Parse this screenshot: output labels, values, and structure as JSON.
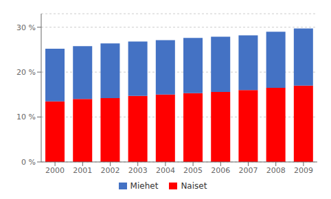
{
  "chart_data": {
    "type": "bar",
    "stacked": true,
    "categories": [
      "2000",
      "2001",
      "2002",
      "2003",
      "2004",
      "2005",
      "2006",
      "2007",
      "2008",
      "2009"
    ],
    "series": [
      {
        "name": "Naiset",
        "color": "#FF0000",
        "values": [
          13.5,
          14.0,
          14.2,
          14.7,
          15.0,
          15.3,
          15.6,
          16.0,
          16.5,
          17.0
        ]
      },
      {
        "name": "Miehet",
        "color": "#4472C4",
        "values": [
          11.7,
          11.8,
          12.2,
          12.1,
          12.1,
          12.3,
          12.3,
          12.2,
          12.5,
          12.7
        ]
      }
    ],
    "ylim": [
      0,
      33
    ],
    "yticks": [
      {
        "value": 0,
        "label": "0 %"
      },
      {
        "value": 10,
        "label": "10 %"
      },
      {
        "value": 20,
        "label": "20 %"
      },
      {
        "value": 30,
        "label": "30 %"
      }
    ],
    "grid": true,
    "legend": "bottom"
  }
}
